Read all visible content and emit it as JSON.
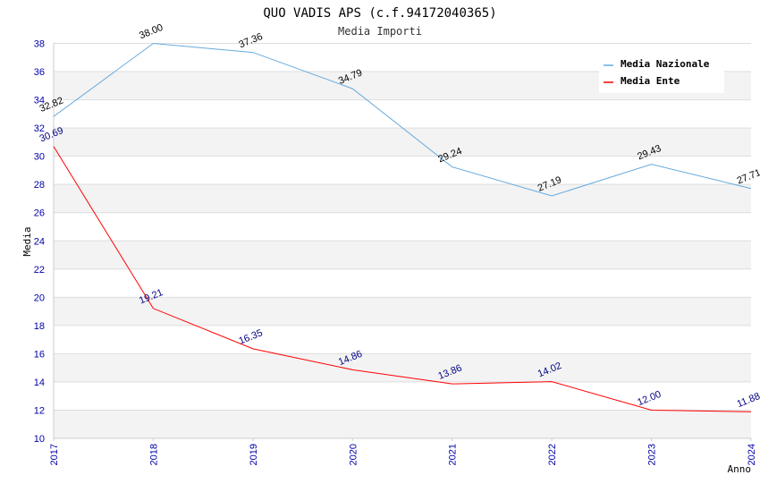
{
  "chart_data": {
    "type": "line",
    "title": "QUO VADIS APS (c.f.94172040365)",
    "subtitle": "Media Importi",
    "xlabel": "Anno",
    "ylabel": "Media",
    "categories": [
      "2017",
      "2018",
      "2019",
      "2020",
      "2021",
      "2022",
      "2023",
      "2024"
    ],
    "ylim": [
      10,
      38
    ],
    "yticks": [
      10,
      12,
      14,
      16,
      18,
      20,
      22,
      24,
      26,
      28,
      30,
      32,
      34,
      36,
      38
    ],
    "grid": true,
    "legend_position": "top-right",
    "series": [
      {
        "name": "Media Nazionale",
        "color": "#66aadd",
        "label_color": "#000000",
        "values": [
          32.82,
          38.0,
          37.36,
          34.79,
          29.24,
          27.19,
          29.43,
          27.71
        ],
        "labels": [
          "32.82",
          "38.00",
          "37.36",
          "34.79",
          "29.24",
          "27.19",
          "29.43",
          "27.71"
        ]
      },
      {
        "name": "Media Ente",
        "color": "#ff0000",
        "label_color": "#000080",
        "values": [
          30.69,
          19.21,
          16.35,
          14.86,
          13.86,
          14.02,
          12.0,
          11.88
        ],
        "labels": [
          "30.69",
          "19.21",
          "16.35",
          "14.86",
          "13.86",
          "14.02",
          "12.00",
          "11.88"
        ]
      }
    ]
  }
}
